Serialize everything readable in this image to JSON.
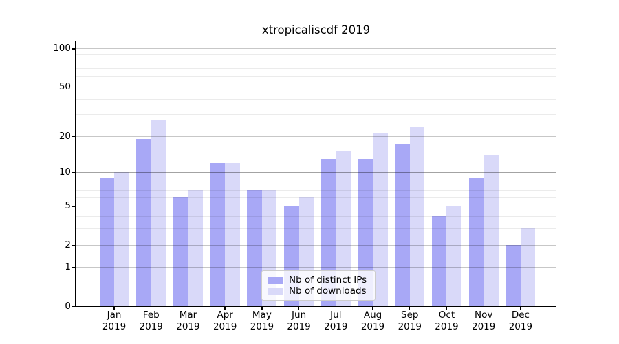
{
  "chart_data": {
    "type": "bar",
    "title": "xtropicaliscdf 2019",
    "categories": [
      "Jan 2019",
      "Feb 2019",
      "Mar 2019",
      "Apr 2019",
      "May 2019",
      "Jun 2019",
      "Jul 2019",
      "Aug 2019",
      "Sep 2019",
      "Oct 2019",
      "Nov 2019",
      "Dec 2019"
    ],
    "series": [
      {
        "name": "Nb of distinct IPs",
        "color": "#a8a8f6",
        "values": [
          9,
          19,
          6,
          12,
          7,
          5,
          13,
          13,
          17,
          4,
          9,
          2
        ]
      },
      {
        "name": "Nb of downloads",
        "color": "#d9d9f9",
        "values": [
          10,
          27,
          7,
          12,
          7,
          6,
          15,
          21,
          24,
          5,
          14,
          3
        ]
      }
    ],
    "xlabel": "",
    "ylabel": "",
    "yscale": "log1p",
    "ylim": [
      0,
      115
    ],
    "yticks": [
      0,
      1,
      2,
      5,
      10,
      20,
      50,
      100
    ],
    "minor_gridlines": [
      3,
      4,
      6,
      7,
      8,
      9,
      30,
      40,
      60,
      70,
      80,
      90
    ],
    "grid": true,
    "legend_position": "lower center"
  }
}
